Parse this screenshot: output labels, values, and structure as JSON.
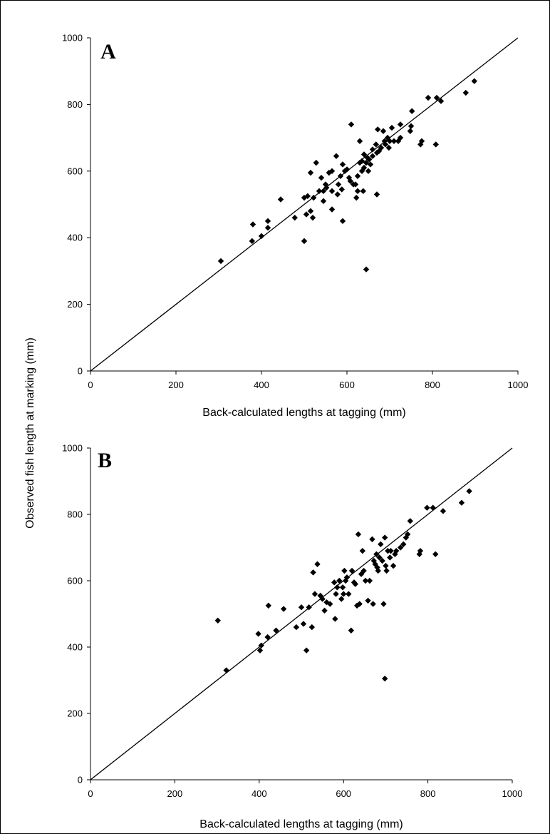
{
  "figure": {
    "ylabel": "Observed fish length at marking (mm)"
  },
  "chart_data": [
    {
      "type": "scatter",
      "panel_label": "A",
      "xlabel": "Back-calculated lengths at tagging (mm)",
      "ylabel": "Observed fish length at marking (mm)",
      "xlim": [
        0,
        1000
      ],
      "ylim": [
        0,
        1000
      ],
      "xticks": [
        0,
        200,
        400,
        600,
        800,
        1000
      ],
      "yticks": [
        0,
        200,
        400,
        600,
        800,
        1000
      ],
      "grid": false,
      "reference_line": {
        "x": [
          0,
          1000
        ],
        "y": [
          0,
          1000
        ]
      },
      "marker": "diamond",
      "marker_color": "#000000",
      "series": [
        {
          "points": [
            [
              305,
              330
            ],
            [
              380,
              440
            ],
            [
              378,
              390
            ],
            [
              400,
              405
            ],
            [
              415,
              430
            ],
            [
              415,
              450
            ],
            [
              445,
              515
            ],
            [
              478,
              460
            ],
            [
              500,
              390
            ],
            [
              500,
              520
            ],
            [
              505,
              470
            ],
            [
              508,
              525
            ],
            [
              515,
              480
            ],
            [
              515,
              595
            ],
            [
              520,
              460
            ],
            [
              522,
              520
            ],
            [
              528,
              625
            ],
            [
              535,
              540
            ],
            [
              540,
              580
            ],
            [
              545,
              510
            ],
            [
              545,
              540
            ],
            [
              550,
              560
            ],
            [
              552,
              550
            ],
            [
              558,
              595
            ],
            [
              565,
              485
            ],
            [
              565,
              540
            ],
            [
              565,
              600
            ],
            [
              575,
              645
            ],
            [
              578,
              530
            ],
            [
              580,
              560
            ],
            [
              585,
              585
            ],
            [
              588,
              545
            ],
            [
              590,
              450
            ],
            [
              590,
              620
            ],
            [
              595,
              600
            ],
            [
              600,
              605
            ],
            [
              605,
              580
            ],
            [
              608,
              570
            ],
            [
              610,
              740
            ],
            [
              615,
              560
            ],
            [
              620,
              560
            ],
            [
              622,
              520
            ],
            [
              625,
              540
            ],
            [
              625,
              585
            ],
            [
              630,
              625
            ],
            [
              630,
              690
            ],
            [
              635,
              600
            ],
            [
              635,
              630
            ],
            [
              638,
              540
            ],
            [
              640,
              610
            ],
            [
              640,
              650
            ],
            [
              645,
              625
            ],
            [
              645,
              305
            ],
            [
              648,
              640
            ],
            [
              650,
              600
            ],
            [
              652,
              635
            ],
            [
              655,
              620
            ],
            [
              660,
              645
            ],
            [
              660,
              665
            ],
            [
              668,
              680
            ],
            [
              670,
              530
            ],
            [
              670,
              655
            ],
            [
              672,
              725
            ],
            [
              675,
              660
            ],
            [
              680,
              670
            ],
            [
              685,
              720
            ],
            [
              688,
              690
            ],
            [
              690,
              680
            ],
            [
              695,
              700
            ],
            [
              698,
              670
            ],
            [
              700,
              690
            ],
            [
              705,
              730
            ],
            [
              710,
              690
            ],
            [
              720,
              690
            ],
            [
              725,
              740
            ],
            [
              725,
              700
            ],
            [
              748,
              720
            ],
            [
              750,
              735
            ],
            [
              752,
              780
            ],
            [
              772,
              680
            ],
            [
              775,
              690
            ],
            [
              790,
              820
            ],
            [
              808,
              680
            ],
            [
              810,
              820
            ],
            [
              820,
              810
            ],
            [
              878,
              835
            ],
            [
              898,
              870
            ]
          ]
        }
      ]
    },
    {
      "type": "scatter",
      "panel_label": "B",
      "xlabel": "Back-calculated lengths at tagging (mm)",
      "ylabel": "",
      "xlim": [
        0,
        1000
      ],
      "ylim": [
        0,
        1000
      ],
      "xticks": [
        0,
        200,
        400,
        600,
        800,
        1000
      ],
      "yticks": [
        0,
        200,
        400,
        600,
        800,
        1000
      ],
      "grid": false,
      "reference_line": {
        "x": [
          0,
          1000
        ],
        "y": [
          0,
          1000
        ]
      },
      "marker": "diamond",
      "marker_color": "#000000",
      "series": [
        {
          "points": [
            [
              302,
              480
            ],
            [
              322,
              330
            ],
            [
              398,
              440
            ],
            [
              402,
              390
            ],
            [
              405,
              405
            ],
            [
              420,
              430
            ],
            [
              422,
              525
            ],
            [
              440,
              450
            ],
            [
              458,
              515
            ],
            [
              488,
              460
            ],
            [
              500,
              520
            ],
            [
              505,
              470
            ],
            [
              512,
              390
            ],
            [
              518,
              520
            ],
            [
              525,
              460
            ],
            [
              528,
              625
            ],
            [
              532,
              560
            ],
            [
              538,
              650
            ],
            [
              545,
              555
            ],
            [
              550,
              545
            ],
            [
              555,
              510
            ],
            [
              560,
              535
            ],
            [
              568,
              530
            ],
            [
              578,
              595
            ],
            [
              580,
              485
            ],
            [
              582,
              560
            ],
            [
              585,
              580
            ],
            [
              590,
              600
            ],
            [
              595,
              545
            ],
            [
              598,
              580
            ],
            [
              600,
              560
            ],
            [
              602,
              630
            ],
            [
              605,
              600
            ],
            [
              608,
              610
            ],
            [
              612,
              560
            ],
            [
              618,
              450
            ],
            [
              620,
              630
            ],
            [
              625,
              595
            ],
            [
              628,
              590
            ],
            [
              632,
              525
            ],
            [
              635,
              740
            ],
            [
              638,
              530
            ],
            [
              642,
              620
            ],
            [
              645,
              690
            ],
            [
              648,
              630
            ],
            [
              652,
              600
            ],
            [
              658,
              540
            ],
            [
              662,
              600
            ],
            [
              668,
              725
            ],
            [
              670,
              530
            ],
            [
              672,
              660
            ],
            [
              675,
              650
            ],
            [
              678,
              680
            ],
            [
              680,
              640
            ],
            [
              682,
              630
            ],
            [
              685,
              670
            ],
            [
              688,
              710
            ],
            [
              692,
              660
            ],
            [
              695,
              530
            ],
            [
              698,
              730
            ],
            [
              698,
              305
            ],
            [
              700,
              645
            ],
            [
              702,
              630
            ],
            [
              705,
              690
            ],
            [
              710,
              670
            ],
            [
              712,
              690
            ],
            [
              718,
              645
            ],
            [
              722,
              680
            ],
            [
              725,
              690
            ],
            [
              735,
              700
            ],
            [
              742,
              710
            ],
            [
              748,
              730
            ],
            [
              752,
              740
            ],
            [
              758,
              780
            ],
            [
              780,
              680
            ],
            [
              782,
              690
            ],
            [
              798,
              820
            ],
            [
              812,
              820
            ],
            [
              818,
              680
            ],
            [
              836,
              810
            ],
            [
              880,
              835
            ],
            [
              898,
              870
            ]
          ]
        }
      ]
    }
  ]
}
